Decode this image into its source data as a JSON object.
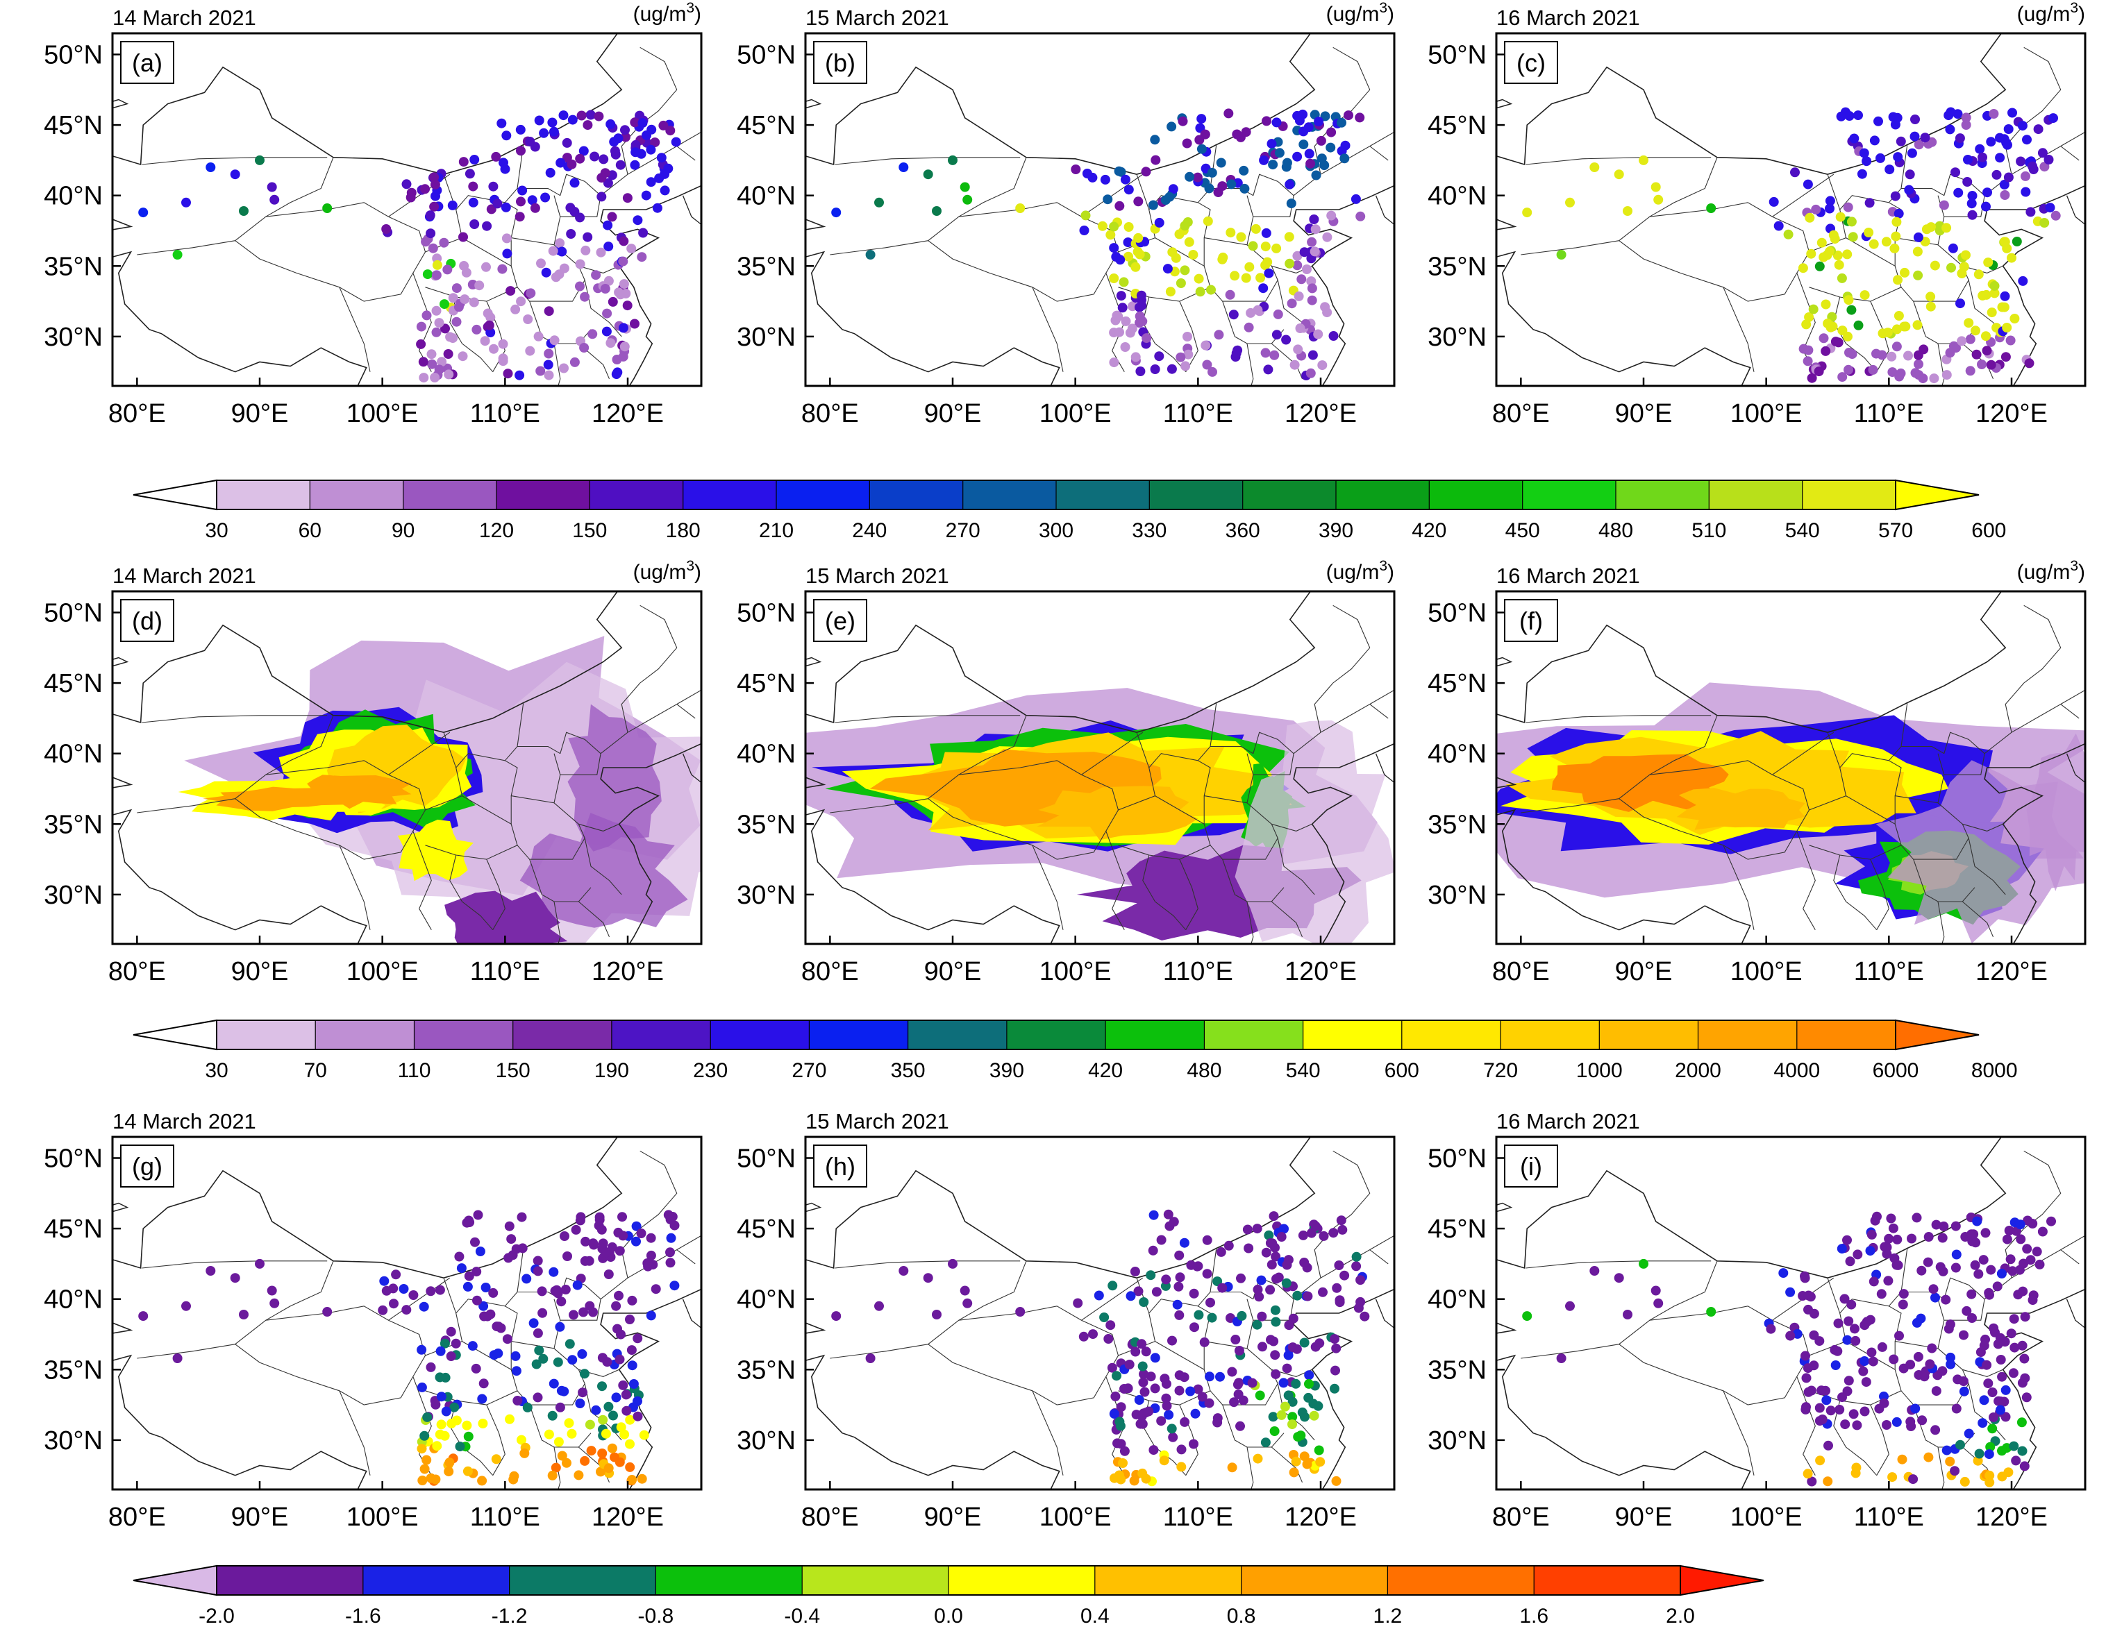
{
  "colors": {
    "cb1": [
      "#dcc0e6",
      "#bf8fd4",
      "#9a57c0",
      "#6f109f",
      "#4f0fc2",
      "#2a10e8",
      "#0a20f0",
      "#0a3ec9",
      "#0a5aa0",
      "#0d6e7a",
      "#0a7a4c",
      "#0c8a2c",
      "#0a9f18",
      "#0cba0c",
      "#13cf13",
      "#70d81a",
      "#b8e01a",
      "#e2ea14"
    ],
    "cb1_low": "#ffffff",
    "cb1_high": "#ffff00",
    "cb2": [
      "#dcc0e6",
      "#bf8fd4",
      "#9a57c0",
      "#7a2aa8",
      "#4d14c5",
      "#2a10e8",
      "#0a20f0",
      "#0d6e7a",
      "#0a8a3a",
      "#0cc00c",
      "#86e01c",
      "#ffff00",
      "#ffe800",
      "#ffd200",
      "#ffbd00",
      "#ffa400",
      "#ff8a00"
    ],
    "cb2_low": "#ffffff",
    "cb2_high": "#ff6e00",
    "cb3": [
      "#6b1a9c",
      "#1a22e6",
      "#0c7a66",
      "#0cc00c",
      "#b8e61c",
      "#ffff00",
      "#ffc000",
      "#ffa000",
      "#ff7000",
      "#ff4000"
    ],
    "cb3_low": "#d9b9e6",
    "cb3_high": "#ff1a00"
  },
  "chart_data": [
    {
      "type": "scatter",
      "panel": "(a)",
      "date": "14 March 2021",
      "units": "(ug/m3)",
      "lat_ticks": [
        "50°N",
        "45°N",
        "40°N",
        "35°N",
        "30°N"
      ],
      "lon_ticks": [
        "80°E",
        "90°E",
        "100°E",
        "110°E",
        "120°E"
      ],
      "xlim": [
        78,
        126
      ],
      "ylim": [
        26.5,
        51.5
      ],
      "colorbar": 1
    },
    {
      "type": "scatter",
      "panel": "(b)",
      "date": "15 March 2021",
      "units": "(ug/m3)",
      "lat_ticks": [
        "50°N",
        "45°N",
        "40°N",
        "35°N",
        "30°N"
      ],
      "lon_ticks": [
        "80°E",
        "90°E",
        "100°E",
        "110°E",
        "120°E"
      ],
      "xlim": [
        78,
        126
      ],
      "ylim": [
        26.5,
        51.5
      ],
      "colorbar": 1
    },
    {
      "type": "scatter",
      "panel": "(c)",
      "date": "16 March 2021",
      "units": "(ug/m3)",
      "lat_ticks": [
        "50°N",
        "45°N",
        "40°N",
        "35°N",
        "30°N"
      ],
      "lon_ticks": [
        "80°E",
        "90°E",
        "100°E",
        "110°E",
        "120°E"
      ],
      "xlim": [
        78,
        126
      ],
      "ylim": [
        26.5,
        51.5
      ],
      "colorbar": 1
    },
    {
      "type": "heatmap",
      "panel": "(d)",
      "date": "14 March 2021",
      "units": "(ug/m3)",
      "lat_ticks": [
        "50°N",
        "45°N",
        "40°N",
        "35°N",
        "30°N"
      ],
      "lon_ticks": [
        "80°E",
        "90°E",
        "100°E",
        "110°E",
        "120°E"
      ],
      "xlim": [
        78,
        126
      ],
      "ylim": [
        26.5,
        51.5
      ],
      "colorbar": 2
    },
    {
      "type": "heatmap",
      "panel": "(e)",
      "date": "15 March 2021",
      "units": "(ug/m3)",
      "lat_ticks": [
        "50°N",
        "45°N",
        "40°N",
        "35°N",
        "30°N"
      ],
      "lon_ticks": [
        "80°E",
        "90°E",
        "100°E",
        "110°E",
        "120°E"
      ],
      "xlim": [
        78,
        126
      ],
      "ylim": [
        26.5,
        51.5
      ],
      "colorbar": 2
    },
    {
      "type": "heatmap",
      "panel": "(f)",
      "date": "16 March 2021",
      "units": "(ug/m3)",
      "lat_ticks": [
        "50°N",
        "45°N",
        "40°N",
        "35°N",
        "30°N"
      ],
      "lon_ticks": [
        "80°E",
        "90°E",
        "100°E",
        "110°E",
        "120°E"
      ],
      "xlim": [
        78,
        126
      ],
      "ylim": [
        26.5,
        51.5
      ],
      "colorbar": 2
    },
    {
      "type": "scatter",
      "panel": "(g)",
      "date": "14 March 2021",
      "units": "",
      "lat_ticks": [
        "50°N",
        "45°N",
        "40°N",
        "35°N",
        "30°N"
      ],
      "lon_ticks": [
        "80°E",
        "90°E",
        "100°E",
        "110°E",
        "120°E"
      ],
      "xlim": [
        78,
        126
      ],
      "ylim": [
        26.5,
        51.5
      ],
      "colorbar": 3
    },
    {
      "type": "scatter",
      "panel": "(h)",
      "date": "15 March 2021",
      "units": "",
      "lat_ticks": [
        "50°N",
        "45°N",
        "40°N",
        "35°N",
        "30°N"
      ],
      "lon_ticks": [
        "80°E",
        "90°E",
        "100°E",
        "110°E",
        "120°E"
      ],
      "xlim": [
        78,
        126
      ],
      "ylim": [
        26.5,
        51.5
      ],
      "colorbar": 3
    },
    {
      "type": "scatter",
      "panel": "(i)",
      "date": "16 March 2021",
      "units": "",
      "lat_ticks": [
        "50°N",
        "45°N",
        "40°N",
        "35°N",
        "30°N"
      ],
      "lon_ticks": [
        "80°E",
        "90°E",
        "100°E",
        "110°E",
        "120°E"
      ],
      "xlim": [
        78,
        126
      ],
      "ylim": [
        26.5,
        51.5
      ],
      "colorbar": 3
    }
  ],
  "colorbars": [
    {
      "ticks": [
        "30",
        "60",
        "90",
        "120",
        "150",
        "180",
        "210",
        "240",
        "270",
        "300",
        "330",
        "360",
        "390",
        "420",
        "450",
        "480",
        "510",
        "540",
        "570",
        "600"
      ]
    },
    {
      "ticks": [
        "30",
        "70",
        "110",
        "150",
        "190",
        "230",
        "270",
        "350",
        "390",
        "420",
        "480",
        "540",
        "600",
        "720",
        "1000",
        "2000",
        "4000",
        "6000",
        "8000"
      ]
    },
    {
      "ticks": [
        "-2.0",
        "-1.6",
        "-1.2",
        "-0.8",
        "-0.4",
        "0.0",
        "0.4",
        "0.8",
        "1.2",
        "1.6",
        "2.0"
      ]
    }
  ]
}
